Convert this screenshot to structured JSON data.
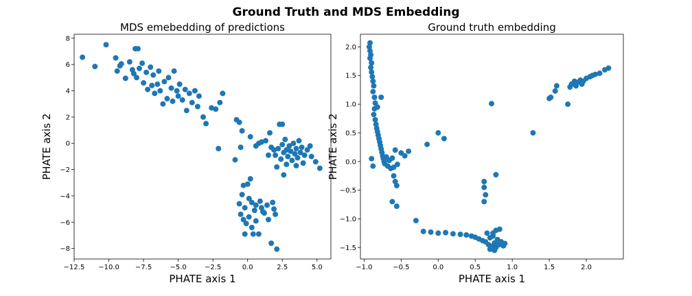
{
  "figure": {
    "title": "Ground Truth and MDS Embedding",
    "point_color": "#1f77b4"
  },
  "chart_data": [
    {
      "type": "scatter",
      "title": "MDS emebedding of predictions",
      "xlabel": "PHATE axis 1",
      "ylabel": "PHATE axis 2",
      "xlim": [
        -12.5,
        6.0
      ],
      "ylim": [
        -8.8,
        8.3
      ],
      "xticks": [
        -12.5,
        -10.0,
        -7.5,
        -5.0,
        -2.5,
        0.0,
        2.5,
        5.0
      ],
      "xtick_labels": [
        "−12.5",
        "−10.0",
        "−7.5",
        "−5.0",
        "−2.5",
        "0.0",
        "2.5",
        "5.0"
      ],
      "yticks": [
        -8,
        -6,
        -4,
        -2,
        0,
        2,
        4,
        6,
        8
      ],
      "ytick_labels": [
        "−8",
        "−6",
        "−4",
        "−2",
        "0",
        "2",
        "4",
        "6",
        "8"
      ],
      "grid": false,
      "points": [
        [
          -11.9,
          6.55
        ],
        [
          -11.0,
          5.85
        ],
        [
          -10.2,
          7.5
        ],
        [
          -9.5,
          6.5
        ],
        [
          -9.2,
          5.9
        ],
        [
          -9.4,
          5.5
        ],
        [
          -9.1,
          6.05
        ],
        [
          -8.8,
          4.95
        ],
        [
          -8.5,
          6.2
        ],
        [
          -8.3,
          5.6
        ],
        [
          -8.1,
          7.2
        ],
        [
          -7.9,
          7.2
        ],
        [
          -8.2,
          5.3
        ],
        [
          -8.0,
          5.0
        ],
        [
          -7.8,
          5.7
        ],
        [
          -7.6,
          6.1
        ],
        [
          -7.5,
          4.6
        ],
        [
          -7.3,
          5.4
        ],
        [
          -7.2,
          4.1
        ],
        [
          -7.0,
          5.8
        ],
        [
          -6.9,
          4.4
        ],
        [
          -6.8,
          5.2
        ],
        [
          -6.7,
          3.8
        ],
        [
          -6.5,
          4.5
        ],
        [
          -6.4,
          5.5
        ],
        [
          -6.3,
          4.0
        ],
        [
          -6.1,
          3.0
        ],
        [
          -6.0,
          4.7
        ],
        [
          -5.8,
          3.4
        ],
        [
          -5.7,
          5.0
        ],
        [
          -5.5,
          4.2
        ],
        [
          -5.4,
          3.2
        ],
        [
          -5.3,
          5.5
        ],
        [
          -5.1,
          4.0
        ],
        [
          -5.0,
          3.6
        ],
        [
          -4.9,
          4.5
        ],
        [
          -4.7,
          3.3
        ],
        [
          -4.5,
          4.1
        ],
        [
          -4.4,
          2.5
        ],
        [
          -4.2,
          3.8
        ],
        [
          -4.0,
          3.1
        ],
        [
          -3.8,
          4.0
        ],
        [
          -3.6,
          2.8
        ],
        [
          -3.5,
          3.6
        ],
        [
          -3.2,
          2.0
        ],
        [
          -3.0,
          1.5
        ],
        [
          -2.6,
          2.7
        ],
        [
          -2.3,
          2.6
        ],
        [
          -2.0,
          3.1
        ],
        [
          -1.8,
          3.8
        ],
        [
          -2.1,
          -0.4
        ],
        [
          -0.8,
          1.8
        ],
        [
          -0.6,
          1.6
        ],
        [
          -0.4,
          0.95
        ],
        [
          -0.9,
          -1.25
        ],
        [
          -0.5,
          -0.3
        ],
        [
          0.2,
          0.5
        ],
        [
          0.6,
          -0.2
        ],
        [
          0.8,
          0.0
        ],
        [
          1.0,
          0.1
        ],
        [
          1.3,
          0.2
        ],
        [
          1.6,
          0.8
        ],
        [
          1.7,
          -0.3
        ],
        [
          1.9,
          -0.5
        ],
        [
          2.0,
          -0.9
        ],
        [
          2.2,
          -0.4
        ],
        [
          2.3,
          1.45
        ],
        [
          2.5,
          1.45
        ],
        [
          2.4,
          -1.2
        ],
        [
          2.5,
          -0.1
        ],
        [
          2.6,
          -0.7
        ],
        [
          2.7,
          0.3
        ],
        [
          2.8,
          -0.5
        ],
        [
          2.9,
          -1.0
        ],
        [
          3.0,
          -0.2
        ],
        [
          3.1,
          -0.6
        ],
        [
          3.2,
          -1.3
        ],
        [
          3.3,
          0.0
        ],
        [
          3.4,
          -0.8
        ],
        [
          3.5,
          -0.4
        ],
        [
          3.6,
          -1.1
        ],
        [
          3.7,
          0.2
        ],
        [
          3.8,
          -0.7
        ],
        [
          3.9,
          -0.3
        ],
        [
          4.0,
          -1.5
        ],
        [
          4.1,
          -0.9
        ],
        [
          4.3,
          -0.5
        ],
        [
          4.5,
          -0.2
        ],
        [
          4.6,
          -1.0
        ],
        [
          4.9,
          -1.4
        ],
        [
          5.2,
          -1.9
        ],
        [
          2.6,
          -2.4
        ],
        [
          2.1,
          -1.8
        ],
        [
          2.8,
          -1.6
        ],
        [
          1.5,
          -0.9
        ],
        [
          3.5,
          -1.7
        ],
        [
          -0.3,
          -3.2
        ],
        [
          0.0,
          -3.1
        ],
        [
          0.2,
          -2.7
        ],
        [
          -0.4,
          -3.9
        ],
        [
          0.1,
          -4.2
        ],
        [
          -0.6,
          -4.6
        ],
        [
          -0.2,
          -4.9
        ],
        [
          0.3,
          -4.5
        ],
        [
          0.5,
          -5.1
        ],
        [
          0.6,
          -4.7
        ],
        [
          0.9,
          -4.4
        ],
        [
          1.0,
          -4.9
        ],
        [
          1.2,
          -5.3
        ],
        [
          1.4,
          -4.7
        ],
        [
          1.5,
          -5.8
        ],
        [
          1.8,
          -4.5
        ],
        [
          1.9,
          -5.0
        ],
        [
          2.0,
          -5.4
        ],
        [
          -0.5,
          -5.4
        ],
        [
          -0.3,
          -5.8
        ],
        [
          -0.1,
          -6.1
        ],
        [
          0.1,
          -5.6
        ],
        [
          0.3,
          -6.4
        ],
        [
          0.6,
          -5.9
        ],
        [
          -0.2,
          -6.9
        ],
        [
          0.4,
          -6.9
        ],
        [
          0.8,
          -6.9
        ],
        [
          1.1,
          -5.2
        ],
        [
          1.7,
          -7.6
        ],
        [
          2.1,
          -8.05
        ]
      ]
    },
    {
      "type": "scatter",
      "title": "Ground truth embedding",
      "xlabel": "PHATE axis 1",
      "ylabel": "PHATE axis 2",
      "xlim": [
        -1.05,
        2.5
      ],
      "ylim": [
        -1.7,
        2.22
      ],
      "xticks": [
        -1.0,
        -0.5,
        0.0,
        0.5,
        1.0,
        1.5,
        2.0
      ],
      "xtick_labels": [
        "−1.0",
        "−0.5",
        "0.0",
        "0.5",
        "1.0",
        "1.5",
        "2.0"
      ],
      "yticks": [
        -1.5,
        -1.0,
        -0.5,
        0.0,
        0.5,
        1.0,
        1.5,
        2.0
      ],
      "ytick_labels": [
        "−1.5",
        "−1.0",
        "−0.5",
        "0.0",
        "0.5",
        "1.0",
        "1.5",
        "2.0"
      ],
      "grid": false,
      "points": [
        [
          -0.92,
          2.07
        ],
        [
          -0.93,
          2.0
        ],
        [
          -0.92,
          1.93
        ],
        [
          -0.91,
          1.86
        ],
        [
          -0.92,
          1.8
        ],
        [
          -0.9,
          1.72
        ],
        [
          -0.91,
          1.64
        ],
        [
          -0.9,
          1.56
        ],
        [
          -0.89,
          1.48
        ],
        [
          -0.88,
          1.4
        ],
        [
          -0.87,
          1.32
        ],
        [
          -0.88,
          1.22
        ],
        [
          -0.86,
          1.12
        ],
        [
          -0.85,
          1.02
        ],
        [
          -0.86,
          0.92
        ],
        [
          -0.87,
          0.82
        ],
        [
          -0.85,
          0.73
        ],
        [
          -0.84,
          0.65
        ],
        [
          -0.83,
          0.58
        ],
        [
          -0.82,
          0.52
        ],
        [
          -0.81,
          0.46
        ],
        [
          -0.8,
          0.4
        ],
        [
          -0.79,
          0.34
        ],
        [
          -0.78,
          0.28
        ],
        [
          -0.77,
          0.22
        ],
        [
          -0.76,
          0.16
        ],
        [
          -0.75,
          0.1
        ],
        [
          -0.74,
          0.05
        ],
        [
          -0.73,
          0.0
        ],
        [
          -0.72,
          -0.04
        ],
        [
          -0.7,
          0.08
        ],
        [
          -0.68,
          -0.08
        ],
        [
          -0.66,
          0.02
        ],
        [
          -0.64,
          -0.12
        ],
        [
          -0.62,
          0.06
        ],
        [
          -0.6,
          -0.1
        ],
        [
          -0.58,
          0.2
        ],
        [
          -0.55,
          -0.05
        ],
        [
          -0.5,
          0.15
        ],
        [
          -0.45,
          0.1
        ],
        [
          -0.4,
          0.18
        ],
        [
          -0.6,
          -0.25
        ],
        [
          -0.58,
          -0.35
        ],
        [
          -0.56,
          -0.42
        ],
        [
          -0.9,
          0.05
        ],
        [
          -0.88,
          -0.08
        ],
        [
          -0.77,
          1.12
        ],
        [
          -0.82,
          0.95
        ],
        [
          -0.62,
          -0.7
        ],
        [
          -0.56,
          -0.78
        ],
        [
          -0.3,
          -1.03
        ],
        [
          -0.2,
          -1.22
        ],
        [
          -0.1,
          -1.23
        ],
        [
          0.0,
          -1.25
        ],
        [
          0.1,
          -1.24
        ],
        [
          0.2,
          -1.26
        ],
        [
          0.3,
          -1.27
        ],
        [
          0.38,
          -1.28
        ],
        [
          0.45,
          -1.3
        ],
        [
          0.5,
          -1.32
        ],
        [
          0.55,
          -1.35
        ],
        [
          0.6,
          -1.38
        ],
        [
          0.64,
          -1.4
        ],
        [
          0.66,
          -1.25
        ],
        [
          0.68,
          -1.45
        ],
        [
          0.7,
          -1.33
        ],
        [
          0.72,
          -1.48
        ],
        [
          0.74,
          -1.3
        ],
        [
          0.76,
          -1.42
        ],
        [
          0.78,
          -1.5
        ],
        [
          0.8,
          -1.36
        ],
        [
          0.82,
          -1.45
        ],
        [
          0.85,
          -1.4
        ],
        [
          0.88,
          -1.47
        ],
        [
          0.9,
          -1.43
        ],
        [
          0.74,
          -1.25
        ],
        [
          0.78,
          -1.2
        ],
        [
          0.83,
          -1.18
        ],
        [
          0.7,
          -1.53
        ],
        [
          0.76,
          -1.55
        ],
        [
          -0.15,
          0.3
        ],
        [
          0.0,
          0.5
        ],
        [
          0.08,
          0.4
        ],
        [
          0.62,
          -0.35
        ],
        [
          0.62,
          -0.45
        ],
        [
          0.62,
          -0.7
        ],
        [
          0.64,
          -0.58
        ],
        [
          0.78,
          -0.23
        ],
        [
          0.72,
          1.01
        ],
        [
          1.28,
          0.5
        ],
        [
          1.5,
          1.1
        ],
        [
          1.52,
          1.12
        ],
        [
          1.58,
          1.23
        ],
        [
          1.6,
          1.32
        ],
        [
          1.75,
          1.0
        ],
        [
          1.78,
          1.3
        ],
        [
          1.8,
          1.35
        ],
        [
          1.84,
          1.4
        ],
        [
          1.88,
          1.38
        ],
        [
          1.92,
          1.42
        ],
        [
          1.96,
          1.4
        ],
        [
          2.0,
          1.45
        ],
        [
          2.05,
          1.48
        ],
        [
          2.08,
          1.5
        ],
        [
          2.12,
          1.52
        ],
        [
          2.18,
          1.54
        ],
        [
          2.25,
          1.6
        ],
        [
          2.3,
          1.63
        ],
        [
          1.86,
          1.32
        ],
        [
          1.94,
          1.35
        ]
      ]
    }
  ]
}
